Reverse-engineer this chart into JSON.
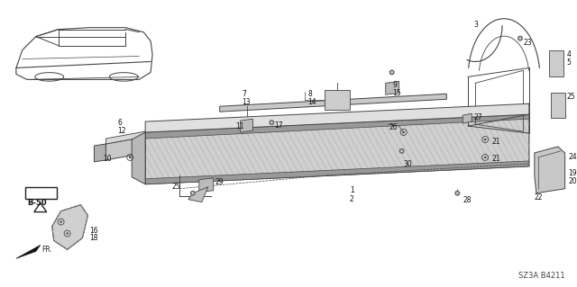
{
  "bg_color": "#ffffff",
  "diagram_code": "SZ3A B4211",
  "fig_width": 6.4,
  "fig_height": 3.19,
  "dpi": 100,
  "line_color": "#444444",
  "gray_fill": "#d8d8d8",
  "hatch_color": "#aaaaaa",
  "dark_fill": "#888888"
}
